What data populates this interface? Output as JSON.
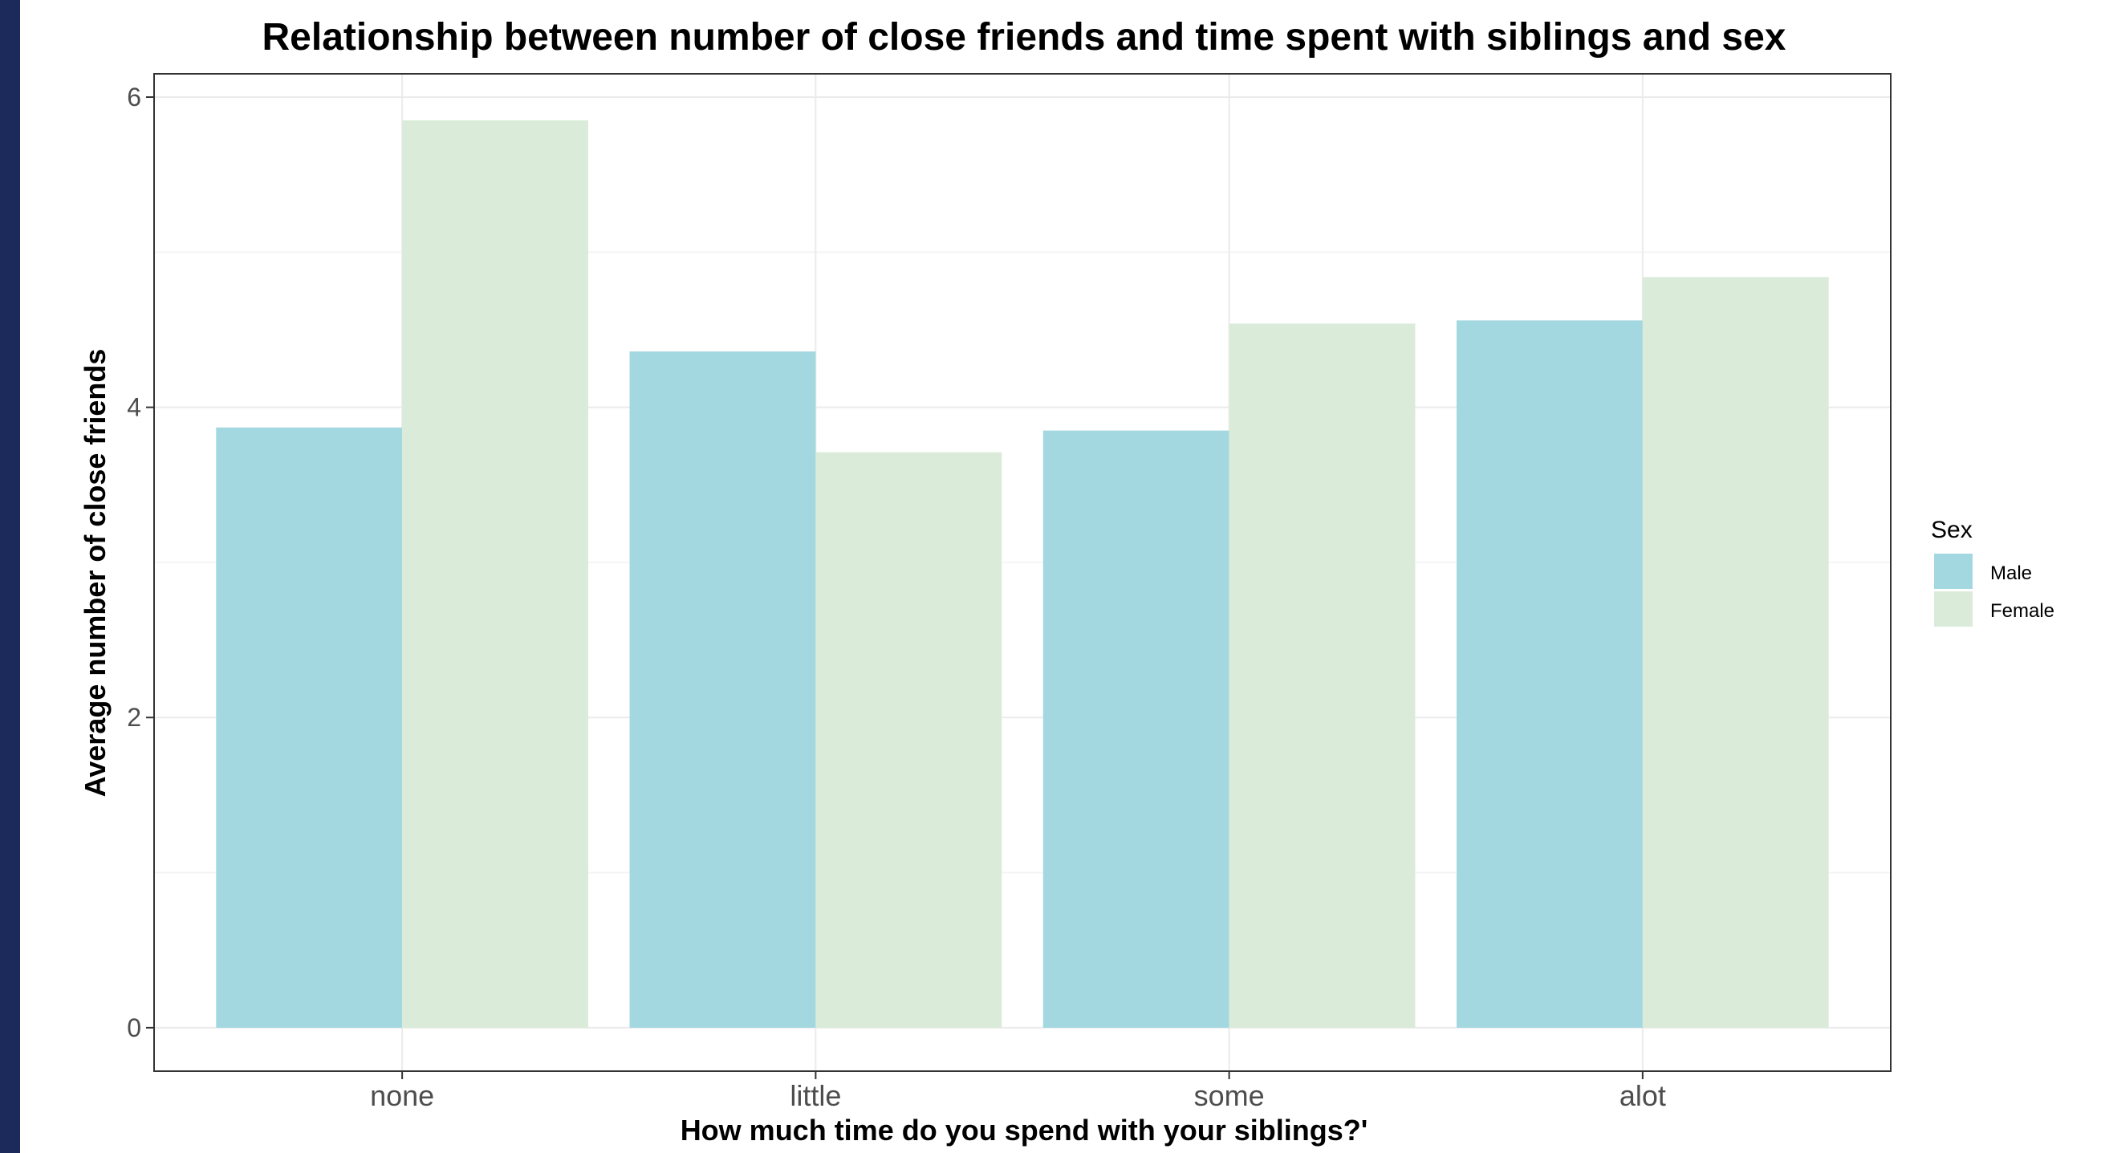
{
  "chart_data": {
    "type": "bar",
    "title": "Relationship between number of close friends and time spent with siblings and sex",
    "xlabel": "How much time do you spend with your siblings?'",
    "ylabel": "Average number of close friends",
    "categories": [
      "none",
      "little",
      "some",
      "alot"
    ],
    "series": [
      {
        "name": "Male",
        "values": [
          3.87,
          4.36,
          3.85,
          4.56
        ],
        "color": "#a3d8e0"
      },
      {
        "name": "Female",
        "values": [
          5.85,
          3.71,
          4.54,
          4.84
        ],
        "color": "#daecd9"
      }
    ],
    "ylim": [
      -0.28,
      6.15
    ],
    "yticks": [
      0,
      2,
      4,
      6
    ],
    "grid": true,
    "legend": {
      "title": "Sex",
      "position": "right"
    }
  },
  "colors": {
    "left_stripe": "#1b2a5a",
    "grid_major": "#ebebeb",
    "grid_minor": "#f5f5f5",
    "panel_border": "#333333"
  }
}
